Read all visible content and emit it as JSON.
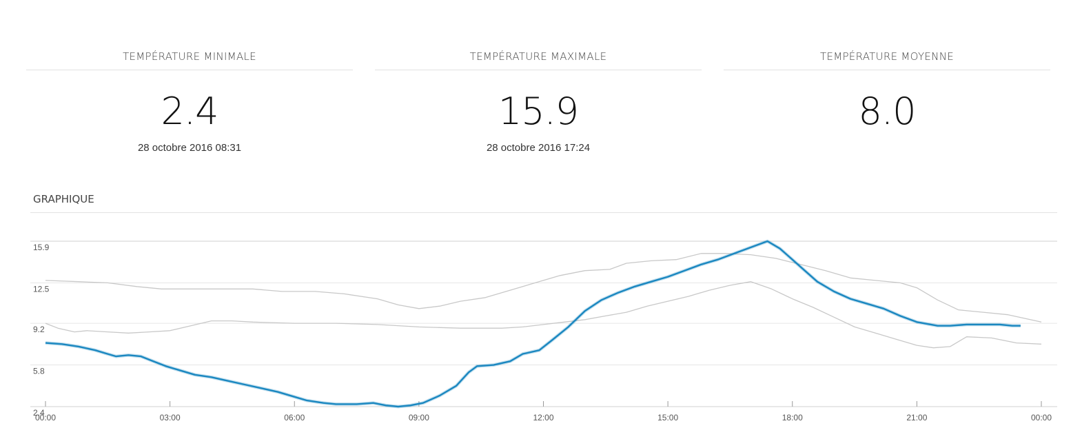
{
  "stats": [
    {
      "title": "TEMPÉRATURE MINIMALE",
      "value": "2.4",
      "date": "28 octobre 2016 08:31"
    },
    {
      "title": "TEMPÉRATURE MAXIMALE",
      "value": "15.9",
      "date": "28 octobre 2016 17:24"
    },
    {
      "title": "TEMPÉRATURE MOYENNE",
      "value": "8.0",
      "date": ""
    }
  ],
  "section_title": "GRAPHIQUE",
  "chart_data": {
    "type": "line",
    "xlabels": [
      "00:00",
      "03:00",
      "06:00",
      "09:00",
      "12:00",
      "15:00",
      "18:00",
      "21:00",
      "00:00"
    ],
    "yticks": [
      "2.4",
      "5.8",
      "9.2",
      "12.5",
      "15.9"
    ],
    "ylim": [
      2.4,
      15.9
    ],
    "xlim_hours": [
      0,
      24
    ],
    "grid": true,
    "colors": {
      "main": "#1a87c0",
      "reference": "#c8c8c8"
    },
    "series": [
      {
        "role": "main",
        "x": [
          0,
          0.4,
          0.8,
          1.2,
          1.5,
          1.7,
          2.0,
          2.3,
          2.6,
          2.9,
          3.2,
          3.6,
          4.0,
          4.4,
          4.8,
          5.2,
          5.6,
          6.0,
          6.3,
          6.7,
          7.0,
          7.5,
          7.9,
          8.2,
          8.5,
          8.8,
          9.1,
          9.5,
          9.9,
          10.2,
          10.4,
          10.8,
          11.2,
          11.5,
          11.9,
          12.2,
          12.6,
          13.0,
          13.4,
          13.8,
          14.2,
          14.6,
          15.0,
          15.4,
          15.8,
          16.2,
          16.6,
          17.0,
          17.4,
          17.7,
          18.0,
          18.3,
          18.6,
          19.0,
          19.4,
          19.8,
          20.2,
          20.6,
          21.0,
          21.5,
          21.8,
          22.2,
          22.6,
          23.0,
          23.3,
          23.5
        ],
        "values": [
          7.6,
          7.5,
          7.3,
          7.0,
          6.7,
          6.5,
          6.6,
          6.5,
          6.1,
          5.7,
          5.4,
          5.0,
          4.8,
          4.5,
          4.2,
          3.9,
          3.6,
          3.2,
          2.9,
          2.7,
          2.6,
          2.6,
          2.7,
          2.5,
          2.4,
          2.5,
          2.7,
          3.3,
          4.1,
          5.2,
          5.7,
          5.8,
          6.1,
          6.7,
          7.0,
          7.8,
          8.9,
          10.2,
          11.1,
          11.7,
          12.2,
          12.6,
          13.0,
          13.5,
          14.0,
          14.4,
          14.9,
          15.4,
          15.9,
          15.3,
          14.4,
          13.5,
          12.6,
          11.8,
          11.2,
          10.8,
          10.4,
          9.8,
          9.3,
          9.0,
          9.0,
          9.1,
          9.1,
          9.1,
          9.0,
          9.0
        ]
      },
      {
        "role": "upper",
        "x": [
          0,
          0.8,
          1.5,
          2.2,
          2.8,
          3.5,
          4.2,
          5.0,
          5.7,
          6.5,
          7.2,
          8.0,
          8.5,
          9.0,
          9.5,
          10.0,
          10.6,
          11.2,
          11.8,
          12.4,
          13.0,
          13.6,
          14.0,
          14.6,
          15.2,
          15.8,
          16.4,
          17.0,
          17.6,
          18.2,
          18.8,
          19.4,
          20.0,
          20.6,
          21.0,
          21.5,
          22.0,
          22.6,
          23.2,
          24.0
        ],
        "values": [
          12.7,
          12.6,
          12.5,
          12.2,
          12.0,
          12.0,
          12.0,
          12.0,
          11.8,
          11.8,
          11.6,
          11.2,
          10.7,
          10.4,
          10.6,
          11.0,
          11.3,
          11.9,
          12.5,
          13.1,
          13.5,
          13.6,
          14.1,
          14.3,
          14.4,
          14.9,
          14.9,
          14.8,
          14.5,
          14.0,
          13.5,
          12.9,
          12.7,
          12.5,
          12.1,
          11.1,
          10.3,
          10.1,
          9.9,
          9.3
        ],
        "name": ""
      },
      {
        "role": "lower",
        "x": [
          0,
          0.3,
          0.7,
          1.0,
          1.5,
          2.0,
          2.5,
          3.0,
          3.5,
          4.0,
          4.5,
          5.0,
          6.0,
          7.0,
          8.0,
          9.0,
          10.0,
          11.0,
          11.5,
          12.0,
          12.5,
          13.0,
          13.5,
          14.0,
          14.5,
          15.0,
          15.5,
          16.0,
          16.5,
          17.0,
          17.5,
          18.0,
          18.5,
          19.0,
          19.5,
          20.0,
          20.5,
          21.0,
          21.4,
          21.8,
          22.2,
          22.8,
          23.4,
          24.0
        ],
        "values": [
          9.2,
          8.8,
          8.5,
          8.6,
          8.5,
          8.4,
          8.5,
          8.6,
          9.0,
          9.4,
          9.4,
          9.3,
          9.2,
          9.2,
          9.1,
          8.9,
          8.8,
          8.8,
          8.9,
          9.1,
          9.3,
          9.5,
          9.8,
          10.1,
          10.6,
          11.0,
          11.4,
          11.9,
          12.3,
          12.6,
          12.0,
          11.2,
          10.5,
          9.7,
          8.9,
          8.4,
          7.9,
          7.4,
          7.2,
          7.3,
          8.1,
          8.0,
          7.6,
          7.5
        ],
        "name": ""
      }
    ]
  }
}
